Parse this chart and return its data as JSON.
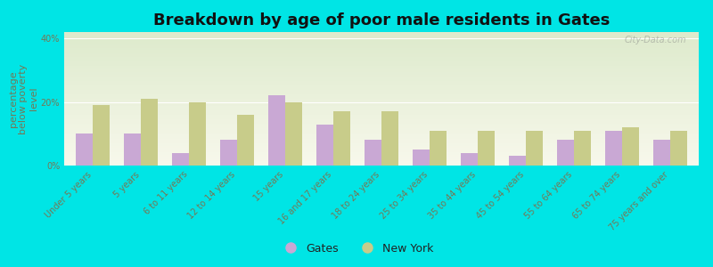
{
  "title": "Breakdown by age of poor male residents in Gates",
  "ylabel": "percentage\nbelow poverty\nlevel",
  "categories": [
    "Under 5 years",
    "5 years",
    "6 to 11 years",
    "12 to 14 years",
    "15 years",
    "16 and 17 years",
    "18 to 24 years",
    "25 to 34 years",
    "35 to 44 years",
    "45 to 54 years",
    "55 to 64 years",
    "65 to 74 years",
    "75 years and over"
  ],
  "gates_values": [
    10.0,
    10.0,
    4.0,
    8.0,
    22.0,
    13.0,
    8.0,
    5.0,
    4.0,
    3.0,
    8.0,
    11.0,
    8.0
  ],
  "ny_values": [
    19.0,
    21.0,
    20.0,
    16.0,
    20.0,
    17.0,
    17.0,
    11.0,
    11.0,
    11.0,
    11.0,
    12.0,
    11.0
  ],
  "gates_color": "#c9a8d4",
  "ny_color": "#c8cc8a",
  "background_color": "#00e5e5",
  "plot_bg_top": "#ddeacc",
  "plot_bg_bottom": "#f0f0e0",
  "ylim": [
    0,
    42
  ],
  "yticks": [
    0,
    20,
    40
  ],
  "ytick_labels": [
    "0%",
    "20%",
    "40%"
  ],
  "bar_width": 0.35,
  "title_fontsize": 13,
  "axis_label_fontsize": 8,
  "tick_fontsize": 7,
  "legend_fontsize": 9,
  "ylabel_color": "#777755",
  "tick_color": "#777755",
  "watermark": "City-Data.com"
}
